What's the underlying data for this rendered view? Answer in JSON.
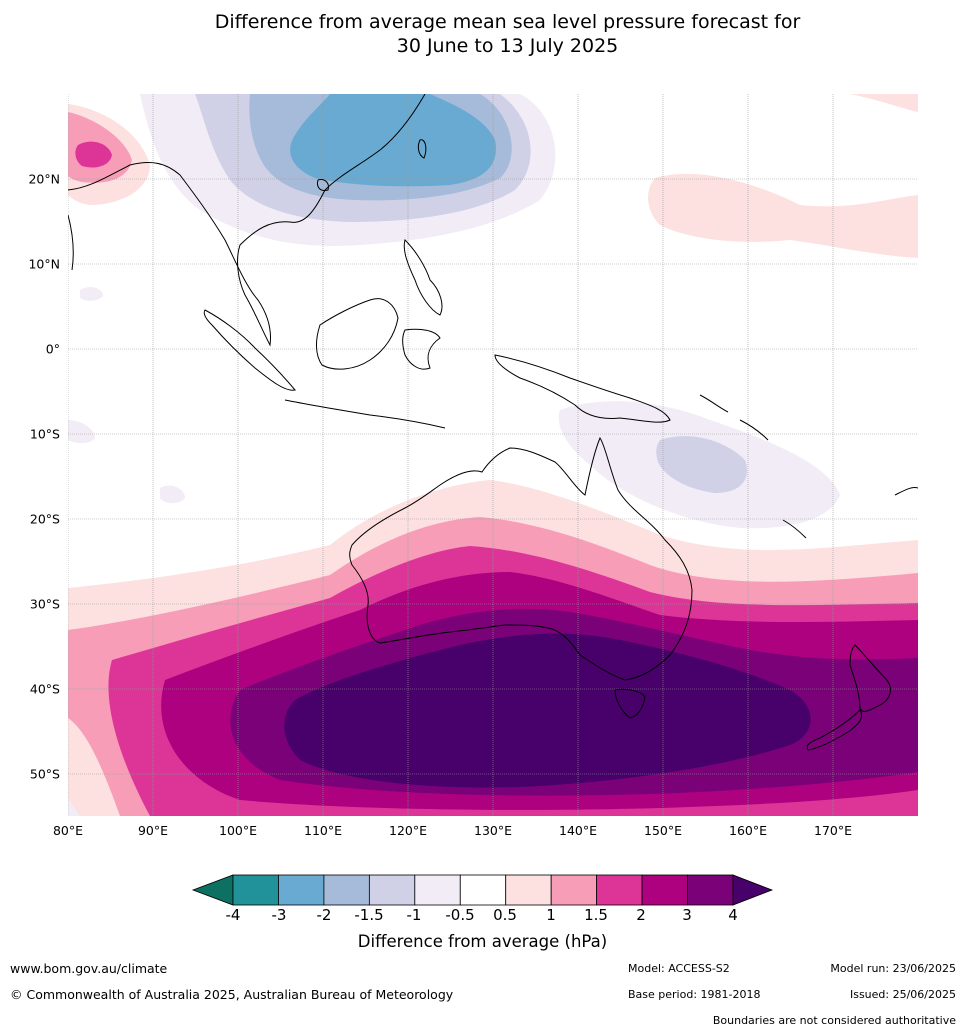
{
  "title": {
    "line1": "Difference from average mean sea level pressure forecast for",
    "line2": "30 June to 13 July 2025"
  },
  "map": {
    "region": "Australia, Maritime Continent and South-East Asia",
    "lon_labels": [
      "80°E",
      "90°E",
      "100°E",
      "110°E",
      "120°E",
      "130°E",
      "140°E",
      "150°E",
      "160°E",
      "170°E"
    ],
    "lat_labels": [
      "20°N",
      "10°N",
      "0°",
      "10°S",
      "20°S",
      "30°S",
      "40°S",
      "50°S"
    ],
    "gridlines": true
  },
  "legend": {
    "title": "Difference from average (hPa)",
    "tick_labels": [
      "-4",
      "-3",
      "-2",
      "-1.5",
      "-1",
      "-0.5",
      "0.5",
      "1",
      "1.5",
      "2",
      "3",
      "4"
    ],
    "colors": [
      "#0c7062",
      "#21919a",
      "#68aad2",
      "#a6bbda",
      "#d0d0e6",
      "#f2ecf6",
      "#ffffff",
      "#fde0e0",
      "#f89db8",
      "#dd3597",
      "#ad0180",
      "#7b0178",
      "#48006b"
    ]
  },
  "footer": {
    "website": "www.bom.gov.au/climate",
    "copyright": "© Commonwealth of Australia 2025, Australian Bureau of Meteorology",
    "model": "Model: ACCESS-S2",
    "model_run": "Model run: 23/06/2025",
    "base_period": "Base period: 1981-2018",
    "issued": "Issued: 25/06/2025",
    "disclaimer": "Boundaries are not considered authoritative"
  }
}
